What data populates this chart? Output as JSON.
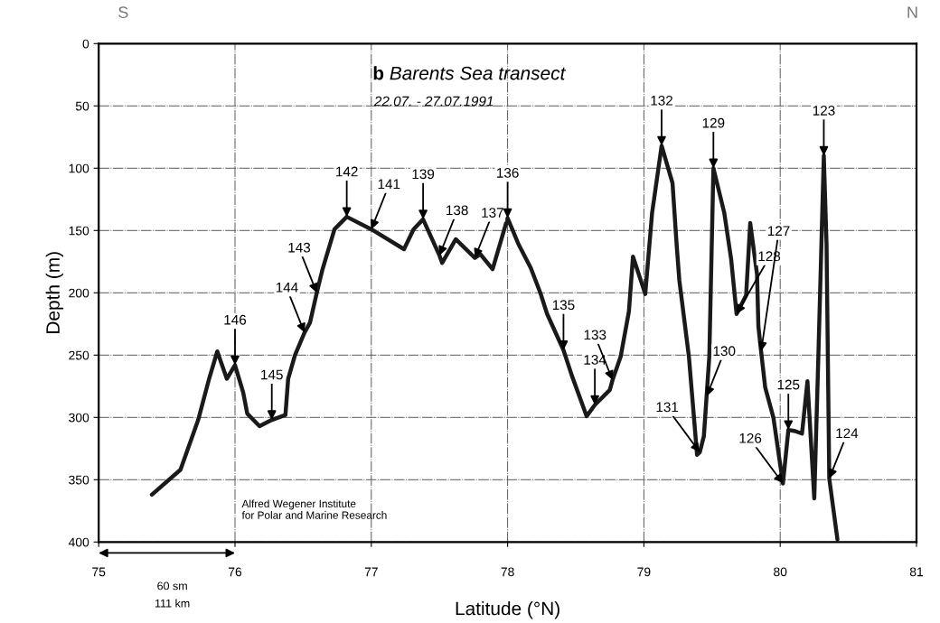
{
  "chart_data": {
    "type": "line",
    "title": "b Barents Sea transect",
    "subtitle": "22.07. - 27.07.1991",
    "xlabel": "Latitude (°N)",
    "ylabel": "Depth (m)",
    "xlim": [
      75,
      81
    ],
    "xticks": [
      75,
      76,
      77,
      78,
      79,
      80,
      81
    ],
    "ylim": [
      400,
      0
    ],
    "yticks": [
      0,
      50,
      100,
      150,
      200,
      250,
      300,
      350,
      400
    ],
    "grid": true,
    "legend": false,
    "marker": "none",
    "line_style": "solid",
    "series": [
      {
        "color": "#1a1a1a",
        "x": [
          75.39,
          75.6,
          75.73,
          75.81,
          75.87,
          75.94,
          76.0,
          76.06,
          76.09,
          76.18,
          76.27,
          76.37,
          76.39,
          76.44,
          76.51,
          76.55,
          76.6,
          76.64,
          76.73,
          76.82,
          77.0,
          77.24,
          77.31,
          77.38,
          77.5,
          77.52,
          77.62,
          77.76,
          77.8,
          77.89,
          78.0,
          78.08,
          78.17,
          78.24,
          78.29,
          78.41,
          78.47,
          78.58,
          78.64,
          78.75,
          78.77,
          78.83,
          78.89,
          78.92,
          79.01,
          79.06,
          79.13,
          79.21,
          79.24,
          79.26,
          79.33,
          79.39,
          79.41,
          79.44,
          79.46,
          79.48,
          79.51,
          79.59,
          79.64,
          79.68,
          79.75,
          79.78,
          79.83,
          79.84,
          79.86,
          79.89,
          79.95,
          80.02,
          80.06,
          80.11,
          80.16,
          80.2,
          80.25,
          80.28,
          80.32,
          80.34,
          80.36,
          80.42
        ],
        "values": [
          362,
          342,
          302,
          269,
          247,
          269,
          258,
          280,
          297,
          307,
          302,
          298,
          269,
          250,
          232,
          224,
          200,
          182,
          149,
          139,
          149,
          165,
          149,
          141,
          170,
          176,
          157,
          172,
          169,
          181,
          140,
          161,
          180,
          200,
          217,
          246,
          266,
          299,
          290,
          278,
          270,
          251,
          215,
          171,
          201,
          136,
          82,
          112,
          161,
          190,
          251,
          330,
          328,
          315,
          283,
          251,
          100,
          136,
          173,
          217,
          202,
          144,
          185,
          227,
          247,
          276,
          300,
          353,
          310,
          311,
          313,
          271,
          365,
          251,
          90,
          161,
          349,
          398
        ]
      }
    ],
    "annotations": [
      {
        "text": "146",
        "x": 76.0,
        "y": 258
      },
      {
        "text": "145",
        "x": 76.27,
        "y": 302
      },
      {
        "text": "144",
        "x": 76.51,
        "y": 232
      },
      {
        "text": "143",
        "x": 76.6,
        "y": 200
      },
      {
        "text": "142",
        "x": 76.82,
        "y": 139
      },
      {
        "text": "141",
        "x": 77.0,
        "y": 149
      },
      {
        "text": "139",
        "x": 77.38,
        "y": 141
      },
      {
        "text": "138",
        "x": 77.5,
        "y": 170
      },
      {
        "text": "137",
        "x": 77.76,
        "y": 172
      },
      {
        "text": "136",
        "x": 78.0,
        "y": 140
      },
      {
        "text": "135",
        "x": 78.41,
        "y": 246
      },
      {
        "text": "134",
        "x": 78.64,
        "y": 290
      },
      {
        "text": "133",
        "x": 78.77,
        "y": 270
      },
      {
        "text": "132",
        "x": 79.13,
        "y": 82
      },
      {
        "text": "130",
        "x": 79.46,
        "y": 283
      },
      {
        "text": "131",
        "x": 79.41,
        "y": 328
      },
      {
        "text": "129",
        "x": 79.51,
        "y": 100
      },
      {
        "text": "128",
        "x": 79.68,
        "y": 217
      },
      {
        "text": "127",
        "x": 79.86,
        "y": 247
      },
      {
        "text": "126",
        "x": 80.02,
        "y": 353
      },
      {
        "text": "125",
        "x": 80.06,
        "y": 310
      },
      {
        "text": "123",
        "x": 80.32,
        "y": 90
      },
      {
        "text": "124",
        "x": 80.36,
        "y": 349
      },
      "S",
      "N",
      "60 sm",
      "111 km",
      "Alfred Wegener Institute\nfor Polar and Marine Research"
    ]
  }
}
